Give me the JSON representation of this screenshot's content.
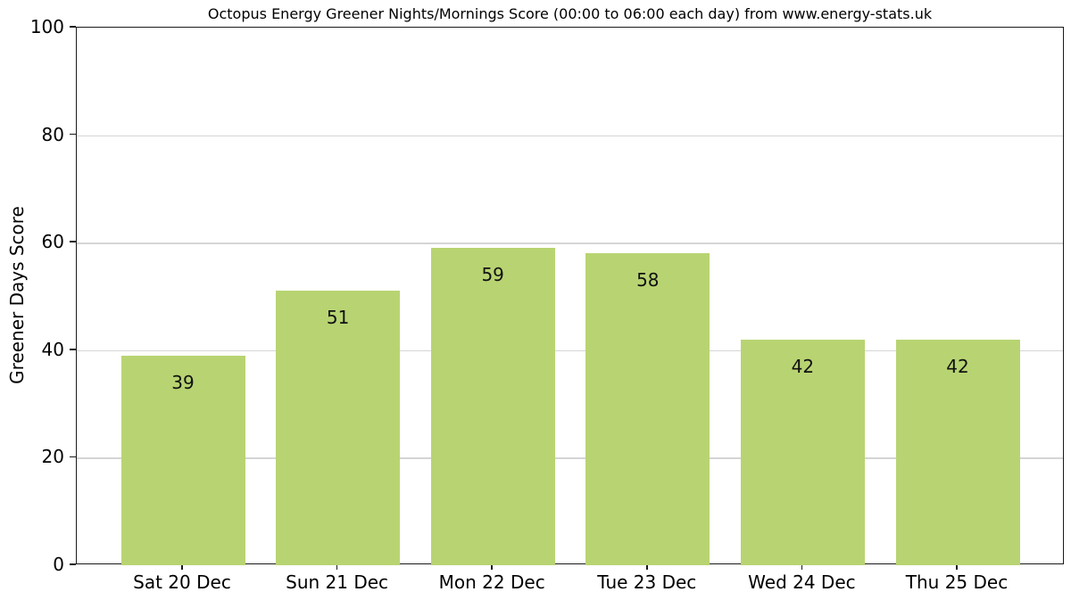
{
  "chart_data": {
    "type": "bar",
    "title": "Octopus Energy Greener Nights/Mornings Score (00:00 to 06:00 each day) from www.energy-stats.uk",
    "ylabel": "Greener Days Score",
    "xlabel": "",
    "categories": [
      "Sat 20 Dec",
      "Sun 21 Dec",
      "Mon 22 Dec",
      "Tue 23 Dec",
      "Wed 24 Dec",
      "Thu 25 Dec"
    ],
    "values": [
      39,
      51,
      59,
      58,
      42,
      42
    ],
    "value_labels": [
      "39",
      "51",
      "59",
      "58",
      "42",
      "42"
    ],
    "ylim": [
      0,
      100
    ],
    "yticks": [
      0,
      20,
      40,
      60,
      80,
      100
    ],
    "grid": "horizontal",
    "legend": "none",
    "bar_color": "#b8d472",
    "grid_color": "#d5d5d5",
    "axis_color": "#1a1a1a",
    "text_color": "#000000"
  }
}
